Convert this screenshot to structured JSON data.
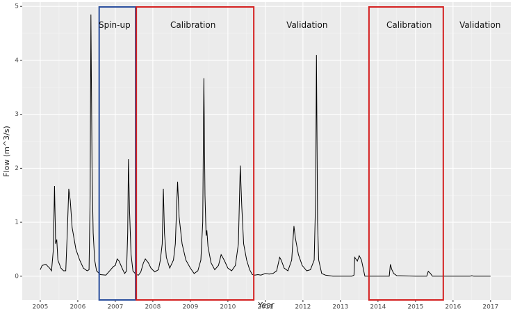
{
  "chart_data": {
    "type": "line",
    "xlabel": "Year",
    "ylabel": "Flow (m^3/s)",
    "color": "#000000",
    "xlim": [
      2004.52,
      2017.54
    ],
    "ylim": [
      -0.44,
      5.08
    ],
    "xticks": [
      2005,
      2006,
      2007,
      2008,
      2009,
      2010,
      2011,
      2012,
      2013,
      2014,
      2015,
      2016,
      2017
    ],
    "yticks": [
      0,
      1,
      2,
      3,
      4,
      5
    ],
    "grid": true,
    "x": [
      2005.0,
      2005.05,
      2005.15,
      2005.25,
      2005.3,
      2005.35,
      2005.38,
      2005.41,
      2005.44,
      2005.47,
      2005.55,
      2005.62,
      2005.68,
      2005.72,
      2005.76,
      2005.8,
      2005.85,
      2005.95,
      2006.05,
      2006.15,
      2006.25,
      2006.3,
      2006.33,
      2006.35,
      2006.38,
      2006.41,
      2006.45,
      2006.5,
      2006.6,
      2006.75,
      2006.85,
      2006.95,
      2007.0,
      2007.05,
      2007.1,
      2007.15,
      2007.2,
      2007.25,
      2007.3,
      2007.33,
      2007.35,
      2007.38,
      2007.42,
      2007.47,
      2007.55,
      2007.62,
      2007.68,
      2007.75,
      2007.8,
      2007.88,
      2007.95,
      2008.05,
      2008.15,
      2008.2,
      2008.25,
      2008.28,
      2008.31,
      2008.36,
      2008.45,
      2008.55,
      2008.6,
      2008.63,
      2008.66,
      2008.7,
      2008.78,
      2008.88,
      2009.0,
      2009.1,
      2009.2,
      2009.28,
      2009.33,
      2009.36,
      2009.39,
      2009.42,
      2009.44,
      2009.47,
      2009.55,
      2009.65,
      2009.75,
      2009.82,
      2009.9,
      2010.0,
      2010.1,
      2010.2,
      2010.28,
      2010.33,
      2010.37,
      2010.42,
      2010.5,
      2010.58,
      2010.65,
      2010.72,
      2010.8,
      2010.88,
      2011.0,
      2011.1,
      2011.2,
      2011.3,
      2011.38,
      2011.42,
      2011.5,
      2011.6,
      2011.7,
      2011.76,
      2011.8,
      2011.88,
      2011.98,
      2012.1,
      2012.2,
      2012.3,
      2012.34,
      2012.36,
      2012.39,
      2012.42,
      2012.5,
      2012.6,
      2012.8,
      2013.0,
      2013.3,
      2013.36,
      2013.38,
      2013.45,
      2013.5,
      2013.56,
      2013.62,
      2013.65,
      2014.0,
      2014.3,
      2014.33,
      2014.37,
      2014.42,
      2014.5,
      2015.0,
      2015.3,
      2015.34,
      2015.4,
      2015.45,
      2016.0,
      2016.45,
      2016.5,
      2016.55,
      2017.0
    ],
    "values": [
      0.12,
      0.2,
      0.22,
      0.15,
      0.1,
      0.5,
      1.67,
      0.6,
      0.68,
      0.3,
      0.15,
      0.1,
      0.1,
      0.8,
      1.62,
      1.4,
      0.9,
      0.5,
      0.3,
      0.15,
      0.1,
      0.12,
      1.5,
      4.85,
      2.0,
      0.8,
      0.3,
      0.1,
      0.03,
      0.02,
      0.1,
      0.18,
      0.2,
      0.32,
      0.28,
      0.2,
      0.12,
      0.05,
      0.1,
      0.8,
      2.17,
      1.2,
      0.4,
      0.1,
      0.03,
      0.02,
      0.08,
      0.25,
      0.32,
      0.25,
      0.15,
      0.08,
      0.12,
      0.3,
      0.6,
      1.62,
      0.8,
      0.35,
      0.15,
      0.3,
      0.6,
      1.2,
      1.75,
      1.1,
      0.6,
      0.3,
      0.15,
      0.05,
      0.1,
      0.3,
      1.0,
      3.67,
      1.5,
      0.75,
      0.85,
      0.55,
      0.25,
      0.12,
      0.2,
      0.4,
      0.3,
      0.15,
      0.1,
      0.2,
      0.6,
      2.05,
      1.3,
      0.6,
      0.3,
      0.12,
      0.03,
      0.02,
      0.03,
      0.02,
      0.05,
      0.04,
      0.05,
      0.1,
      0.35,
      0.3,
      0.15,
      0.1,
      0.3,
      0.93,
      0.7,
      0.4,
      0.2,
      0.1,
      0.12,
      0.3,
      1.5,
      4.1,
      1.0,
      0.3,
      0.05,
      0.02,
      0,
      0,
      0,
      0.02,
      0.35,
      0.28,
      0.38,
      0.3,
      0.1,
      0,
      0,
      0,
      0.22,
      0.12,
      0.05,
      0.01,
      0,
      0,
      0.09,
      0.05,
      0,
      0,
      0,
      0.01,
      0,
      0
    ],
    "annotations": [
      {
        "text": "Spin-up",
        "x": 2006.98,
        "y": 4.65,
        "box": [
          2006.57,
          2007.54,
          4.99
        ],
        "color": "#2b4f9e"
      },
      {
        "text": "Calibration",
        "x": 2009.07,
        "y": 4.65,
        "box": [
          2007.56,
          2010.69,
          4.99
        ],
        "color": "#d42020"
      },
      {
        "text": "Validation",
        "x": 2012.11,
        "y": 4.65
      },
      {
        "text": "Calibration",
        "x": 2014.83,
        "y": 4.65,
        "box": [
          2013.76,
          2015.74,
          4.99
        ],
        "color": "#d42020"
      },
      {
        "text": "Validation",
        "x": 2016.72,
        "y": 4.65
      }
    ]
  }
}
